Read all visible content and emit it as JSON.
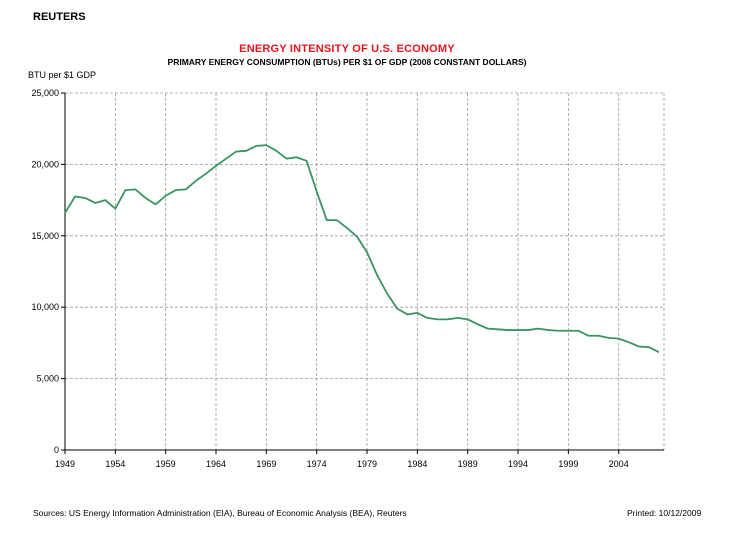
{
  "header": {
    "brand": "REUTERS"
  },
  "footer": {
    "sources": "Sources:  US Energy Information Administration (EIA), Bureau of Economic Analysis (BEA), Reuters",
    "printed": "Printed:  10/12/2009"
  },
  "colors": {
    "title": "#e8141b",
    "line": "#3a9460",
    "grid": "#9a9a9a"
  },
  "chart_data": {
    "type": "line",
    "title": "ENERGY INTENSITY OF U.S. ECONOMY",
    "subtitle": "PRIMARY ENERGY CONSUMPTION (BTUs) PER $1 OF GDP (2008 CONSTANT DOLLARS)",
    "ylabel": "BTU per $1 GDP",
    "xlabel": "",
    "xlim": [
      1949,
      2008.5
    ],
    "ylim": [
      0,
      25000
    ],
    "grid": true,
    "x_ticks": [
      1949,
      1954,
      1959,
      1964,
      1969,
      1974,
      1979,
      1984,
      1989,
      1994,
      1999,
      2004
    ],
    "x_tick_labels": [
      "1949",
      "1954",
      "1959",
      "1964",
      "1969",
      "1974",
      "1979",
      "1984",
      "1989",
      "1994",
      "1999",
      "2004"
    ],
    "y_ticks": [
      0,
      5000,
      10000,
      15000,
      20000,
      25000
    ],
    "y_tick_labels": [
      "0",
      "5,000",
      "10,000",
      "15,000",
      "20,000",
      "25,000"
    ],
    "series": [
      {
        "x": [
          1949,
          1950,
          1951,
          1952,
          1953,
          1954,
          1955,
          1956,
          1957,
          1958,
          1959,
          1960,
          1961,
          1962,
          1963,
          1964,
          1965,
          1966,
          1967,
          1968,
          1969,
          1970,
          1971,
          1972,
          1973,
          1974,
          1975,
          1976,
          1977,
          1978,
          1979,
          1980,
          1981,
          1982,
          1983,
          1984,
          1985,
          1986,
          1987,
          1988,
          1989,
          1990,
          1991,
          1992,
          1993,
          1994,
          1995,
          1996,
          1997,
          1998,
          1999,
          2000,
          2001,
          2002,
          2003,
          2004,
          2005,
          2006,
          2007,
          2008
        ],
        "values": [
          16600,
          17750,
          17650,
          17300,
          17500,
          16900,
          18200,
          18250,
          17650,
          17200,
          17800,
          18200,
          18250,
          18850,
          19350,
          19900,
          20400,
          20900,
          20950,
          21300,
          21350,
          20950,
          20400,
          20500,
          20250,
          18100,
          16100,
          16100,
          15550,
          14950,
          13850,
          12250,
          10950,
          9900,
          9500,
          9600,
          9250,
          9150,
          9150,
          9250,
          9150,
          8800,
          8500,
          8450,
          8400,
          8400,
          8400,
          8500,
          8400,
          8350,
          8350,
          8350,
          8000,
          8000,
          7850,
          7800,
          7550,
          7250,
          7200,
          6850
        ]
      }
    ]
  }
}
